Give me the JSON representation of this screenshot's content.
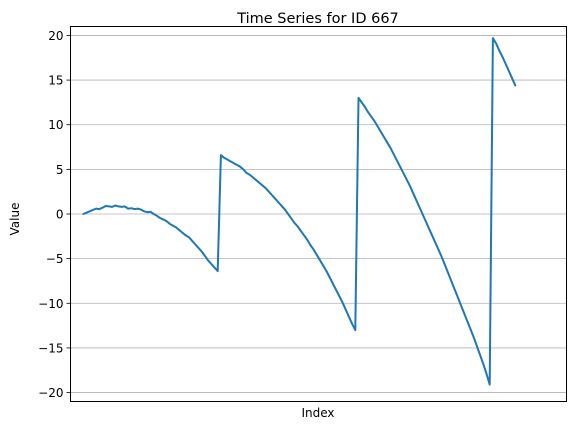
{
  "chart_data": {
    "type": "line",
    "title": "Time Series for ID 667",
    "xlabel": "Index",
    "ylabel": "Value",
    "xlim": [
      -4,
      151
    ],
    "ylim": [
      -21,
      21
    ],
    "yticks": [
      -20,
      -15,
      -10,
      -5,
      0,
      5,
      10,
      15,
      20
    ],
    "ytick_labels": [
      "−20",
      "−15",
      "−10",
      "−5",
      "0",
      "5",
      "10",
      "15",
      "20"
    ],
    "grid": "horizontal",
    "legend": "none",
    "colors": {
      "line": "#1f77b4",
      "grid": "#b0b0b0"
    },
    "series": [
      {
        "values": [
          0.0,
          0.15,
          0.3,
          0.45,
          0.6,
          0.55,
          0.7,
          0.9,
          0.85,
          0.8,
          0.95,
          0.85,
          0.8,
          0.85,
          0.6,
          0.65,
          0.55,
          0.6,
          0.5,
          0.3,
          0.2,
          0.25,
          0.0,
          -0.2,
          -0.45,
          -0.6,
          -0.8,
          -1.1,
          -1.3,
          -1.5,
          -1.8,
          -2.1,
          -2.4,
          -2.6,
          -3.0,
          -3.4,
          -3.8,
          -4.2,
          -4.7,
          -5.2,
          -5.6,
          -6.0,
          -6.4,
          6.6,
          6.3,
          6.1,
          5.9,
          5.7,
          5.5,
          5.3,
          5.0,
          4.6,
          4.4,
          4.1,
          3.8,
          3.5,
          3.2,
          2.9,
          2.5,
          2.1,
          1.7,
          1.3,
          0.9,
          0.5,
          0.0,
          -0.5,
          -1.0,
          -1.4,
          -1.9,
          -2.4,
          -2.9,
          -3.5,
          -4.0,
          -4.6,
          -5.2,
          -5.8,
          -6.4,
          -7.1,
          -7.8,
          -8.5,
          -9.2,
          -9.9,
          -10.7,
          -11.5,
          -12.3,
          -13.0,
          13.0,
          12.5,
          12.0,
          11.4,
          10.9,
          10.4,
          9.8,
          9.2,
          8.6,
          8.0,
          7.4,
          6.7,
          6.0,
          5.3,
          4.6,
          3.9,
          3.2,
          2.4,
          1.6,
          0.8,
          0.0,
          -0.8,
          -1.6,
          -2.4,
          -3.2,
          -4.0,
          -4.8,
          -5.7,
          -6.6,
          -7.5,
          -8.4,
          -9.3,
          -10.2,
          -11.1,
          -12.0,
          -12.9,
          -13.8,
          -14.8,
          -15.8,
          -16.8,
          -17.9,
          -19.1,
          19.7,
          19.1,
          18.3,
          17.6,
          16.8,
          16.0,
          15.2,
          14.4
        ]
      }
    ]
  }
}
